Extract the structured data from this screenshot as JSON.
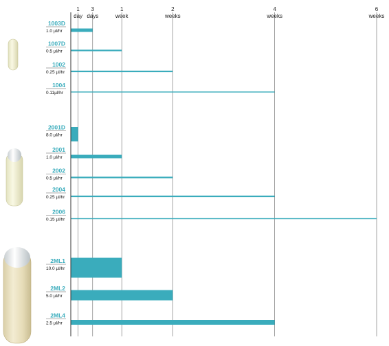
{
  "accent_color": "#3aacbc",
  "chart_data": {
    "type": "bar",
    "orientation": "horizontal",
    "x_unit": "days",
    "xlim": [
      0,
      42
    ],
    "x_ticks": [
      {
        "value": 1,
        "line1": "1",
        "line2": "day"
      },
      {
        "value": 3,
        "line1": "3",
        "line2": "days"
      },
      {
        "value": 7,
        "line1": "1",
        "line2": "week"
      },
      {
        "value": 14,
        "line1": "2",
        "line2": "weeks"
      },
      {
        "value": 28,
        "line1": "4",
        "line2": "weeks"
      },
      {
        "value": 42,
        "line1": "6",
        "line2": "weeks"
      }
    ],
    "groups": [
      {
        "icon": "small-capsule-icon",
        "bars": [
          {
            "model": "1003D",
            "rate": "1.0 µl/hr",
            "days": 3,
            "thickness": "thick"
          },
          {
            "model": "1007D",
            "rate": "0.5 µl/hr",
            "days": 7,
            "thickness": "thin"
          },
          {
            "model": "1002",
            "rate": "0.25 µl/hr",
            "days": 14,
            "thickness": "thin"
          },
          {
            "model": "1004",
            "rate": "0.11µl/hr",
            "days": 28,
            "thickness": "hair"
          }
        ]
      },
      {
        "icon": "medium-capsule-icon",
        "bars": [
          {
            "model": "2001D",
            "rate": "8.0 µl/hr",
            "days": 1,
            "thickness": "block"
          },
          {
            "model": "2001",
            "rate": "1.0 µl/hr",
            "days": 7,
            "thickness": "thick"
          },
          {
            "model": "2002",
            "rate": "0.5 µl/hr",
            "days": 14,
            "thickness": "thin"
          },
          {
            "model": "2004",
            "rate": "0.25 µl/hr",
            "days": 28,
            "thickness": "thin"
          },
          {
            "model": "2006",
            "rate": "0.15 µl/hr",
            "days": 42,
            "thickness": "hair"
          }
        ]
      },
      {
        "icon": "large-capsule-icon",
        "bars": [
          {
            "model": "2ML1",
            "rate": "10.0 µl/hr",
            "days": 7,
            "thickness": "huge"
          },
          {
            "model": "2ML2",
            "rate": "5.0 µl/hr",
            "days": 14,
            "thickness": "large"
          },
          {
            "model": "2ML4",
            "rate": "2.5 µl/hr",
            "days": 28,
            "thickness": "medium"
          }
        ]
      }
    ]
  }
}
